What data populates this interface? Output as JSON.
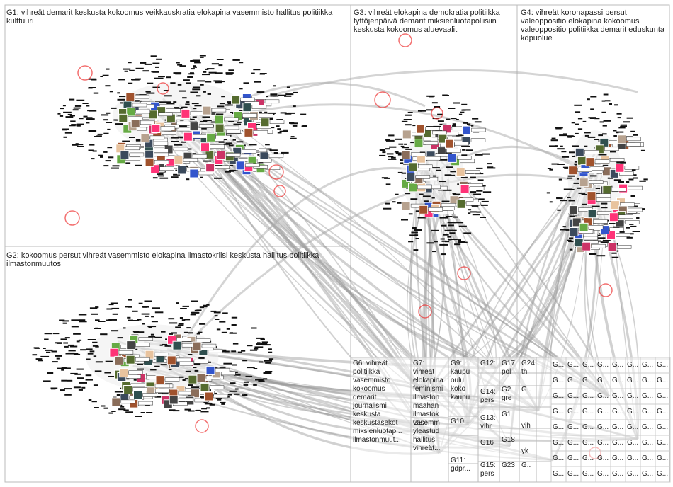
{
  "groups": [
    {
      "id": "G1",
      "terms": "vihreät demarit keskusta kokoomus veikkauskratia elokapina vasemmisto hallitus politiikka kulttuuri"
    },
    {
      "id": "G2",
      "terms": "kokoomus persut vihreät vasemmisto elokapina ilmastokriisi keskusta hallitus politiikka ilmastonmuutos"
    },
    {
      "id": "G3",
      "terms": "vihreät elokapina demokratia politiikka tyttöjenpäivä demarit miksienluotapoliisiin keskusta kokoomus aluevaalit"
    },
    {
      "id": "G4",
      "terms": "vihreät koronapassi persut valeoppositio elokapina kokoomus valeoppositio politiikka demarit eduskunta kdpuolue"
    }
  ],
  "small_groups": [
    {
      "id": "G6",
      "terms": [
        "vihreät",
        "politiikka",
        "vasemmisto",
        "kokoomus",
        "demarit",
        "journalismi",
        "keskusta",
        "keskustasekot",
        "miksienluotap...",
        "ilmastonmuut..."
      ]
    },
    {
      "id": "G7",
      "terms": [
        "vihreät",
        "elokapina",
        "feminismi",
        "ilmaston",
        "maahan",
        "ilmastok",
        "vasemm"
      ]
    },
    {
      "id": "G8",
      "terms": [
        "yleastud",
        "hallitus",
        "vihreät..."
      ]
    },
    {
      "id": "G9",
      "terms": [
        "kaupu",
        "oulu",
        "koko",
        "kaupu"
      ]
    },
    {
      "id": "G10",
      "terms": [
        "G10..."
      ]
    },
    {
      "id": "G11",
      "terms": [
        "gdpr..."
      ]
    },
    {
      "id": "G12",
      "terms": [
        "kaupu"
      ]
    },
    {
      "id": "G13",
      "terms": [
        "vihr"
      ]
    },
    {
      "id": "G14",
      "terms": [
        "pers"
      ]
    },
    {
      "id": "G15",
      "terms": [
        "pers"
      ]
    },
    {
      "id": "G16",
      "terms": [
        "G16..."
      ]
    },
    {
      "id": "G17",
      "terms": [
        "pol"
      ]
    },
    {
      "id": "G18",
      "terms": [
        "yk"
      ]
    },
    {
      "id": "G2x",
      "terms": [
        "gre"
      ]
    },
    {
      "id": "G23",
      "terms": [
        ""
      ]
    },
    {
      "id": "G24",
      "terms": [
        "th"
      ]
    }
  ],
  "grid_label": "G..."
}
